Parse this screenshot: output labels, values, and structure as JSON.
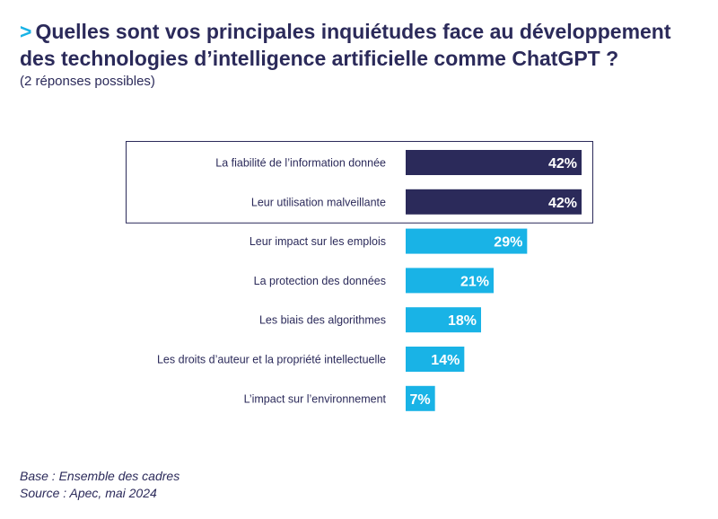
{
  "header": {
    "marker": ">",
    "title": "Quelles sont vos principales inquiétudes face au développement des technologies d’intelligence artificielle comme ChatGPT ?",
    "subtitle": "(2 réponses possibles)"
  },
  "chart_data": {
    "type": "bar",
    "orientation": "horizontal",
    "categories": [
      "La fiabilité de l’information donnée",
      "Leur utilisation malveillante",
      "Leur impact sur les emplois",
      "La protection des données",
      "Les biais des algorithmes",
      "Les droits d’auteur et la propriété intellectuelle",
      "L’impact sur l’environnement"
    ],
    "values": [
      42,
      42,
      29,
      21,
      18,
      14,
      7
    ],
    "unit": "%",
    "highlighted": [
      true,
      true,
      false,
      false,
      false,
      false,
      false
    ],
    "xlim": [
      0,
      45
    ],
    "colors": {
      "highlight": "#2b2a5a",
      "default": "#19b3e6",
      "label": "#2b2a5a",
      "value_text": "#ffffff"
    }
  },
  "footer": {
    "base": "Base : Ensemble des cadres",
    "source": "Source : Apec, mai 2024"
  }
}
